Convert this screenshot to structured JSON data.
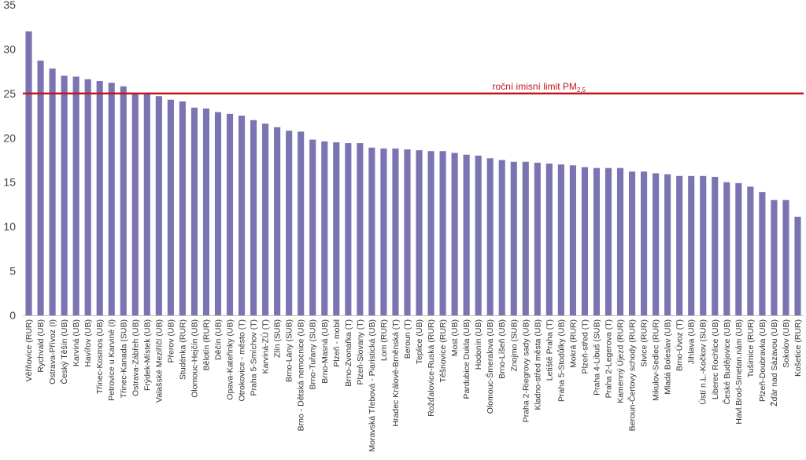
{
  "chart_data": {
    "type": "bar",
    "title": "",
    "xlabel": "",
    "ylabel": "",
    "ylim": [
      0,
      35
    ],
    "yticks": [
      0,
      5,
      10,
      15,
      20,
      25,
      30,
      35
    ],
    "grid": false,
    "colors": {
      "bar": "#7b74b2",
      "limit_line": "#c0161b",
      "limit_text": "#c0161b",
      "axis": "#bfbfbf"
    },
    "reference_line": {
      "value": 25,
      "label": "roční imisní limit PM",
      "label_subscript": "2,5"
    },
    "categories": [
      "Věřňovice (RUR)",
      "Rychvald (UB)",
      "Ostrava-Přívoz (I)",
      "Český Těšín (UB)",
      "Karviná (UB)",
      "Havířov (UB)",
      "Třinec-Kosmos (UB)",
      "Petrovice u Karviné (I)",
      "Třinec-Kanada (SUB)",
      "Ostrava-Zábřeh (UB)",
      "Frýdek-Místek (UB)",
      "Valašské Meziříčí (UB)",
      "Přerov (UB)",
      "Studénka (RUR)",
      "Olomouc-Hejčín (UB)",
      "Bělotín (RUR)",
      "Děčín (UB)",
      "Opava-Kateřinky (UB)",
      "Otrokovice - město (T)",
      "Praha 5-Smíchov (T)",
      "Karviná-ZÚ (T)",
      "Zlín (SUB)",
      "Brno-Lány (SUB)",
      "Brno - Dětská nemocnice (UB)",
      "Brno-Tuřany (SUB)",
      "Brno-Masná (UB)",
      "Plzeň - mobil",
      "Brno-Zvonařka (T)",
      "Plzeň-Slovany (T)",
      "Moravská Třebová - Piaristická (UB)",
      "Lom (RUR)",
      "Hradec Králové-Brněnská (T)",
      "Beroun (T)",
      "Teplice (UB)",
      "Rožďalovice-Ruská (RUR)",
      "Těšnovice (RUR)",
      "Most (UB)",
      "Pardubice Dukla (UB)",
      "Hodonín (UB)",
      "Olomouc-Šmeralova (UB)",
      "Brno-Líšeň (UB)",
      "Znojmo (SUB)",
      "Praha 2-Riegrovy sady (UB)",
      "Kladno-střed města (UB)",
      "Letiště Praha (T)",
      "Praha 5-Stodůlky (UB)",
      "Mokrá (RUR)",
      "Plzeň-střed (T)",
      "Praha 4-Libuš (SUB)",
      "Praha 2-Legerova (T)",
      "Kamenný Újezd (RUR)",
      "Beroun-Čertovy schody (RUR)",
      "Sivice (RUR)",
      "Mikulov-Sedlec (RUR)",
      "Mladá Boleslav (UB)",
      "Brno-Úvoz (T)",
      "Jihlava (UB)",
      "Ústí n.L.-Kočkov (SUB)",
      "Liberec Rochlice (UB)",
      "České Budějovice (UB)",
      "Havl.Brod-Smetan.nám (UB)",
      "Tušimice (RUR)",
      "Plzeň-Doubravka (UB)",
      "Žďár nad Sázavou (UB)",
      "Sokolov (UB)",
      "Košetice (RUR)"
    ],
    "values": [
      32.0,
      28.7,
      27.8,
      27.0,
      26.9,
      26.6,
      26.4,
      26.2,
      25.8,
      24.9,
      24.9,
      24.7,
      24.3,
      24.1,
      23.4,
      23.3,
      22.9,
      22.7,
      22.5,
      22.0,
      21.6,
      21.2,
      20.8,
      20.7,
      19.8,
      19.6,
      19.5,
      19.4,
      19.4,
      18.9,
      18.8,
      18.8,
      18.7,
      18.6,
      18.5,
      18.5,
      18.3,
      18.1,
      18.0,
      17.7,
      17.5,
      17.3,
      17.3,
      17.2,
      17.1,
      17.0,
      16.9,
      16.7,
      16.6,
      16.6,
      16.6,
      16.2,
      16.2,
      16.0,
      15.9,
      15.7,
      15.7,
      15.7,
      15.6,
      15.0,
      14.9,
      14.5,
      13.9,
      13.0,
      13.0,
      11.1
    ]
  }
}
